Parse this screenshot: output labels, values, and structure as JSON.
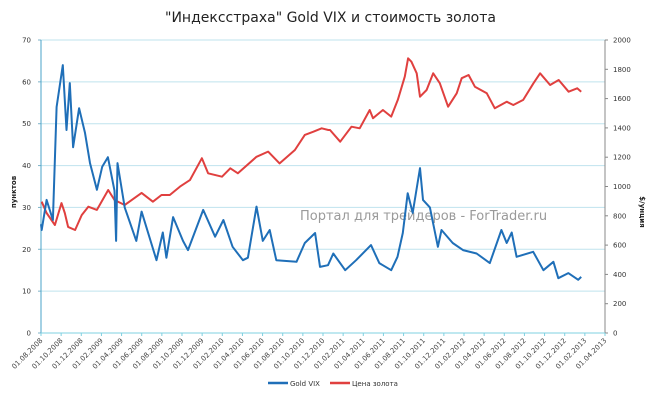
{
  "chart_data": {
    "type": "line",
    "title": "\"Индексстраха\" Gold VIX и стоимость золота",
    "ylabel_left": "пунктов",
    "ylabel_right": "$/унция",
    "ylim_left": [
      0,
      70
    ],
    "ylim_right": [
      0,
      2000
    ],
    "yticks_left": [
      "0",
      "10",
      "20",
      "30",
      "40",
      "50",
      "60",
      "70"
    ],
    "yticks_right": [
      "0",
      "200",
      "400",
      "600",
      "800",
      "1000",
      "1200",
      "1400",
      "1600",
      "1800",
      "2000"
    ],
    "xlim": [
      "2008-08-01",
      "2013-04-01"
    ],
    "xticks": [
      "01.08.2008",
      "01.10.2008",
      "01.12.2008",
      "01.02.2009",
      "01.04.2009",
      "01.06.2009",
      "01.08.2009",
      "01.10.2009",
      "01.12.2009",
      "01.02.2010",
      "01.04.2010",
      "01.06.2010",
      "01.08.2010",
      "01.10.2010",
      "01.12.2010",
      "01.02.2011",
      "01.04.2011",
      "01.06.2011",
      "01.08.2011",
      "01.10.2011",
      "01.12.2011",
      "01.02.2012",
      "01.04.2012",
      "01.06.2012",
      "01.08.2012",
      "01.10.2012",
      "01.12.2012",
      "01.02.2013",
      "01.04.2013"
    ],
    "grid": true,
    "legend_position": "bottom",
    "watermark": "Портал для трейдеров - ForTrader.ru",
    "series": [
      {
        "name": "Gold VIX",
        "axis": "left",
        "color": "#1f6fb8",
        "points": [
          [
            "2008-08-01",
            26
          ],
          [
            "2008-08-03",
            24.6
          ],
          [
            "2008-08-18",
            31.8
          ],
          [
            "2008-09-06",
            27
          ],
          [
            "2008-09-17",
            54
          ],
          [
            "2008-10-06",
            64
          ],
          [
            "2008-10-17",
            48.5
          ],
          [
            "2008-10-27",
            59.7
          ],
          [
            "2008-11-06",
            44.4
          ],
          [
            "2008-11-24",
            53.7
          ],
          [
            "2008-12-12",
            47.8
          ],
          [
            "2008-12-27",
            40.6
          ],
          [
            "2009-01-17",
            34.2
          ],
          [
            "2009-02-02",
            39.7
          ],
          [
            "2009-02-19",
            42
          ],
          [
            "2009-03-11",
            34
          ],
          [
            "2009-03-16",
            22
          ],
          [
            "2009-03-20",
            40.6
          ],
          [
            "2009-04-11",
            30
          ],
          [
            "2009-05-16",
            22
          ],
          [
            "2009-06-01",
            29
          ],
          [
            "2009-07-16",
            17.4
          ],
          [
            "2009-08-04",
            24
          ],
          [
            "2009-08-15",
            18
          ],
          [
            "2009-09-04",
            27.7
          ],
          [
            "2009-10-04",
            22
          ],
          [
            "2009-10-19",
            19.8
          ],
          [
            "2009-12-04",
            29.4
          ],
          [
            "2010-01-09",
            23
          ],
          [
            "2010-02-03",
            27
          ],
          [
            "2010-03-03",
            20.6
          ],
          [
            "2010-04-03",
            17.4
          ],
          [
            "2010-04-18",
            18
          ],
          [
            "2010-05-14",
            30.2
          ],
          [
            "2010-06-02",
            22
          ],
          [
            "2010-06-23",
            24.6
          ],
          [
            "2010-07-13",
            17.4
          ],
          [
            "2010-09-12",
            17
          ],
          [
            "2010-10-07",
            21.5
          ],
          [
            "2010-11-07",
            23.9
          ],
          [
            "2010-11-22",
            15.8
          ],
          [
            "2010-12-16",
            16.2
          ],
          [
            "2011-01-01",
            19
          ],
          [
            "2011-02-06",
            15
          ],
          [
            "2011-03-11",
            17.4
          ],
          [
            "2011-04-25",
            21
          ],
          [
            "2011-05-20",
            16.7
          ],
          [
            "2011-06-25",
            15
          ],
          [
            "2011-07-14",
            18.2
          ],
          [
            "2011-07-30",
            23.9
          ],
          [
            "2011-08-14",
            33.4
          ],
          [
            "2011-08-29",
            28.7
          ],
          [
            "2011-09-20",
            39.4
          ],
          [
            "2011-09-29",
            31.8
          ],
          [
            "2011-10-20",
            30
          ],
          [
            "2011-11-13",
            20.6
          ],
          [
            "2011-11-24",
            24.6
          ],
          [
            "2011-12-28",
            21.5
          ],
          [
            "2012-01-28",
            19.8
          ],
          [
            "2012-03-09",
            19
          ],
          [
            "2012-04-18",
            16.7
          ],
          [
            "2012-05-23",
            24.6
          ],
          [
            "2012-06-08",
            21.5
          ],
          [
            "2012-06-23",
            24
          ],
          [
            "2012-07-08",
            18.2
          ],
          [
            "2012-08-27",
            19.4
          ],
          [
            "2012-09-27",
            15
          ],
          [
            "2012-10-27",
            17
          ],
          [
            "2012-11-11",
            13.1
          ],
          [
            "2012-12-11",
            14.3
          ],
          [
            "2013-01-10",
            12.7
          ],
          [
            "2013-01-19",
            13.4
          ]
        ]
      },
      {
        "name": "Цена золота",
        "axis": "right",
        "color": "#e0403f",
        "points": [
          [
            "2008-08-03",
            896
          ],
          [
            "2008-08-18",
            819
          ],
          [
            "2008-09-12",
            737
          ],
          [
            "2008-10-02",
            887
          ],
          [
            "2008-10-12",
            819
          ],
          [
            "2008-10-22",
            724
          ],
          [
            "2008-11-12",
            703
          ],
          [
            "2008-12-02",
            805
          ],
          [
            "2008-12-22",
            862
          ],
          [
            "2009-01-17",
            840
          ],
          [
            "2009-02-20",
            976
          ],
          [
            "2009-03-11",
            908
          ],
          [
            "2009-04-11",
            874
          ],
          [
            "2009-06-01",
            956
          ],
          [
            "2009-07-05",
            896
          ],
          [
            "2009-07-31",
            942
          ],
          [
            "2009-08-25",
            942
          ],
          [
            "2009-09-25",
            999
          ],
          [
            "2009-10-25",
            1044
          ],
          [
            "2009-11-30",
            1193
          ],
          [
            "2009-12-19",
            1090
          ],
          [
            "2010-01-30",
            1067
          ],
          [
            "2010-02-24",
            1124
          ],
          [
            "2010-03-19",
            1090
          ],
          [
            "2010-05-14",
            1203
          ],
          [
            "2010-06-18",
            1238
          ],
          [
            "2010-07-23",
            1158
          ],
          [
            "2010-09-07",
            1249
          ],
          [
            "2010-10-07",
            1352
          ],
          [
            "2010-11-02",
            1374
          ],
          [
            "2010-11-27",
            1397
          ],
          [
            "2010-12-17",
            1386
          ],
          [
            "2010-12-22",
            1386
          ],
          [
            "2011-01-22",
            1306
          ],
          [
            "2011-02-25",
            1408
          ],
          [
            "2011-03-22",
            1397
          ],
          [
            "2011-04-21",
            1522
          ],
          [
            "2011-05-01",
            1466
          ],
          [
            "2011-05-31",
            1522
          ],
          [
            "2011-06-25",
            1477
          ],
          [
            "2011-07-15",
            1591
          ],
          [
            "2011-08-05",
            1750
          ],
          [
            "2011-08-15",
            1875
          ],
          [
            "2011-08-25",
            1852
          ],
          [
            "2011-09-10",
            1773
          ],
          [
            "2011-09-20",
            1613
          ],
          [
            "2011-10-10",
            1659
          ],
          [
            "2011-10-30",
            1773
          ],
          [
            "2011-11-19",
            1705
          ],
          [
            "2011-12-14",
            1545
          ],
          [
            "2012-01-09",
            1636
          ],
          [
            "2012-01-24",
            1739
          ],
          [
            "2012-02-14",
            1761
          ],
          [
            "2012-03-04",
            1681
          ],
          [
            "2012-04-09",
            1636
          ],
          [
            "2012-05-03",
            1534
          ],
          [
            "2012-06-08",
            1579
          ],
          [
            "2012-06-28",
            1556
          ],
          [
            "2012-07-28",
            1591
          ],
          [
            "2012-08-28",
            1705
          ],
          [
            "2012-09-17",
            1773
          ],
          [
            "2012-10-17",
            1693
          ],
          [
            "2012-11-12",
            1727
          ],
          [
            "2012-12-12",
            1647
          ],
          [
            "2013-01-07",
            1670
          ],
          [
            "2013-01-19",
            1647
          ]
        ]
      }
    ]
  }
}
